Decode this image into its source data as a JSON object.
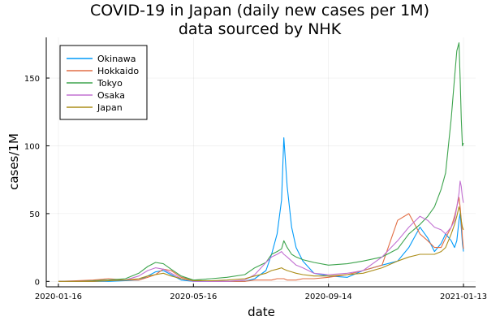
{
  "chart_data": {
    "type": "line",
    "title": "COVID-19 in Japan (daily new cases per 1M)",
    "subtitle": "data sourced by NHK",
    "xlabel": "date",
    "ylabel": "cases/1M",
    "x_range": [
      "2020-01-16",
      "2021-01-13"
    ],
    "ylim": [
      -4,
      180
    ],
    "xticks": [
      "2020-01-16",
      "2020-05-16",
      "2020-09-14",
      "2021-01-13"
    ],
    "yticks": [
      0,
      50,
      100,
      150
    ],
    "grid": true,
    "legend_position": "top-left",
    "x": [
      "2020-01-16",
      "2020-02-01",
      "2020-02-16",
      "2020-03-01",
      "2020-03-16",
      "2020-03-28",
      "2020-04-05",
      "2020-04-12",
      "2020-04-19",
      "2020-04-26",
      "2020-05-05",
      "2020-05-16",
      "2020-06-01",
      "2020-06-15",
      "2020-07-01",
      "2020-07-10",
      "2020-07-20",
      "2020-07-25",
      "2020-07-30",
      "2020-08-03",
      "2020-08-05",
      "2020-08-08",
      "2020-08-12",
      "2020-08-16",
      "2020-08-22",
      "2020-09-01",
      "2020-09-14",
      "2020-10-01",
      "2020-10-15",
      "2020-11-01",
      "2020-11-15",
      "2020-11-25",
      "2020-12-05",
      "2020-12-12",
      "2020-12-18",
      "2020-12-24",
      "2020-12-28",
      "2021-01-02",
      "2021-01-05",
      "2021-01-07",
      "2021-01-09",
      "2021-01-10",
      "2021-01-11",
      "2021-01-12",
      "2021-01-13"
    ],
    "series": [
      {
        "name": "Okinawa",
        "color": "#009af9",
        "values": [
          0,
          0,
          0,
          0,
          0.5,
          1,
          4,
          7,
          8,
          5,
          1,
          0,
          0,
          0,
          0,
          2,
          8,
          20,
          35,
          60,
          106,
          70,
          40,
          25,
          15,
          6,
          4,
          3,
          8,
          12,
          15,
          25,
          40,
          32,
          22,
          28,
          35,
          30,
          25,
          30,
          45,
          50,
          40,
          28,
          22
        ]
      },
      {
        "name": "Hokkaido",
        "color": "#e26f46",
        "values": [
          0,
          0.5,
          1,
          2,
          1,
          1,
          3,
          5,
          9,
          8,
          3,
          1,
          0,
          0,
          0,
          1,
          1,
          1,
          2,
          2,
          2,
          1,
          1,
          1,
          2,
          2,
          3,
          5,
          8,
          12,
          45,
          50,
          35,
          30,
          25,
          25,
          32,
          40,
          48,
          55,
          62,
          55,
          45,
          32,
          24
        ]
      },
      {
        "name": "Tokyo",
        "color": "#3da44d",
        "values": [
          0,
          0,
          0.5,
          1,
          2,
          6,
          11,
          14,
          13,
          9,
          4,
          1,
          2,
          3,
          5,
          10,
          14,
          20,
          22,
          24,
          30,
          25,
          20,
          18,
          16,
          14,
          12,
          13,
          15,
          18,
          24,
          35,
          42,
          48,
          55,
          68,
          80,
          120,
          150,
          170,
          176,
          150,
          120,
          100,
          102
        ]
      },
      {
        "name": "Osaka",
        "color": "#c271d2",
        "values": [
          0,
          0,
          0,
          0.5,
          1,
          4,
          8,
          10,
          9,
          6,
          2,
          0,
          0,
          0,
          1,
          5,
          14,
          18,
          20,
          22,
          20,
          18,
          15,
          12,
          10,
          6,
          5,
          6,
          8,
          18,
          30,
          40,
          48,
          45,
          40,
          38,
          35,
          40,
          45,
          55,
          65,
          74,
          70,
          62,
          58
        ]
      },
      {
        "name": "Japan",
        "color": "#ac8d18",
        "values": [
          0,
          0,
          0,
          0.5,
          1,
          2,
          4,
          5,
          6,
          4,
          2,
          0.5,
          0.5,
          1,
          2,
          4,
          6,
          8,
          9,
          10,
          9,
          8,
          7,
          6,
          5,
          4,
          4,
          5,
          6,
          10,
          15,
          18,
          20,
          20,
          20,
          22,
          25,
          35,
          42,
          48,
          55,
          52,
          45,
          40,
          38
        ]
      }
    ]
  }
}
